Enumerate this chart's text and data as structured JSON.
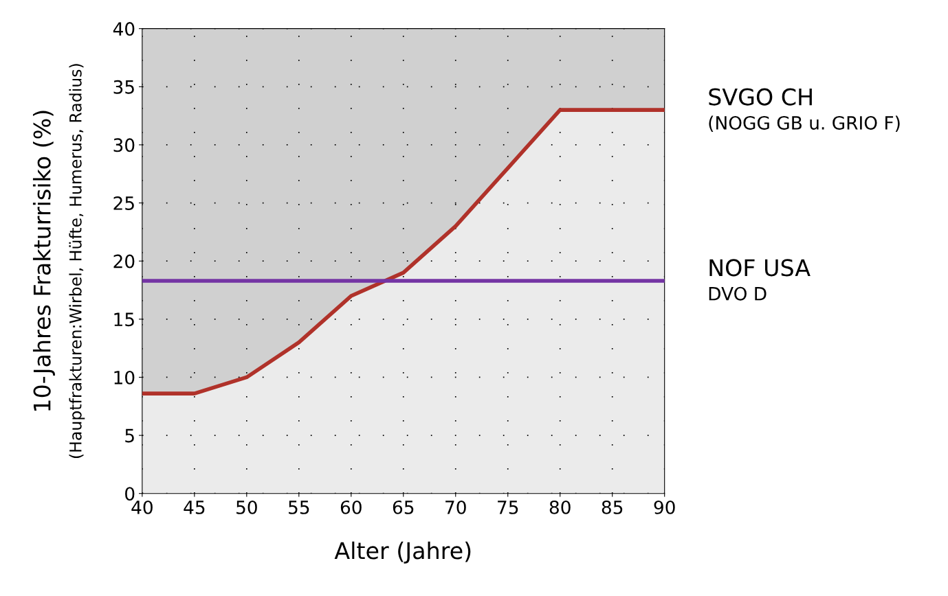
{
  "chart_data": {
    "type": "line",
    "xlabel": "Alter (Jahre)",
    "ylabel": "10-Jahres Frakturrisiko (%)",
    "x": [
      40,
      45,
      50,
      55,
      60,
      65,
      70,
      75,
      80,
      85,
      90
    ],
    "series": [
      {
        "type": "area",
        "name": "SVGO CH",
        "color": "#b0322a",
        "values": [
          8.6,
          8.6,
          10,
          13,
          17,
          19,
          23,
          28,
          33,
          33,
          33
        ]
      },
      {
        "name": "NOF USA",
        "color": "#7434a4",
        "values": [
          18.3,
          18.3,
          18.3,
          18.3,
          18.3,
          18.3,
          18.3,
          18.3,
          18.3,
          18.3,
          18.3
        ]
      }
    ],
    "annotations": [
      "(Hauptfrakturen:Wirbel, Hüfte, Humerus, Radius)",
      {
        "text": "(NOGG GB u. GRIO F)",
        "x": 90,
        "y": 33
      },
      {
        "text": "DVO D",
        "x": 90,
        "y": 18.3
      }
    ],
    "xlim": [
      40,
      90
    ],
    "xticks": [
      40,
      45,
      50,
      55,
      60,
      65,
      70,
      75,
      80,
      85,
      90
    ],
    "ylim": [
      0,
      40
    ],
    "yticks": [
      0,
      5,
      10,
      15,
      20,
      25,
      30,
      35,
      40
    ],
    "grid": true,
    "marker": "none",
    "line_style": "solid",
    "legend": false
  }
}
